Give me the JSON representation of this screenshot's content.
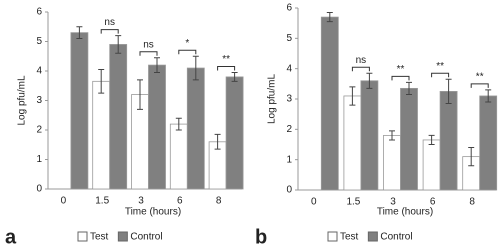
{
  "chart_data": [
    {
      "type": "bar",
      "panel_label": "a",
      "y_label": "Log pfu/mL",
      "x_label": "Time (hours)",
      "categories": [
        "0",
        "1.5",
        "3",
        "6",
        "8"
      ],
      "series": [
        {
          "name": "Test",
          "color": "#ffffff",
          "values": [
            null,
            3.65,
            3.2,
            2.2,
            1.6
          ],
          "errors": [
            null,
            0.4,
            0.5,
            0.2,
            0.25
          ]
        },
        {
          "name": "Control",
          "color": "#808080",
          "values": [
            5.3,
            4.9,
            4.2,
            4.1,
            3.8
          ],
          "errors": [
            0.2,
            0.3,
            0.25,
            0.4,
            0.15
          ]
        }
      ],
      "significance": [
        null,
        "ns",
        "ns",
        "*",
        "**"
      ],
      "ylim": [
        0,
        6
      ],
      "yticks": [
        0,
        1,
        2,
        3,
        4,
        5,
        6
      ]
    },
    {
      "type": "bar",
      "panel_label": "b",
      "y_label": "Log pfu/mL",
      "x_label": "Time (hours)",
      "categories": [
        "0",
        "1.5",
        "3",
        "6",
        "8"
      ],
      "series": [
        {
          "name": "Test",
          "color": "#ffffff",
          "values": [
            null,
            3.1,
            1.8,
            1.65,
            1.1
          ],
          "errors": [
            null,
            0.3,
            0.15,
            0.15,
            0.3
          ]
        },
        {
          "name": "Control",
          "color": "#808080",
          "values": [
            5.7,
            3.6,
            3.35,
            3.25,
            3.1
          ],
          "errors": [
            0.15,
            0.25,
            0.2,
            0.4,
            0.2
          ]
        }
      ],
      "significance": [
        null,
        "ns",
        "**",
        "**",
        "**"
      ],
      "ylim": [
        0,
        6
      ],
      "yticks": [
        0,
        1,
        2,
        3,
        4,
        5,
        6
      ]
    }
  ]
}
